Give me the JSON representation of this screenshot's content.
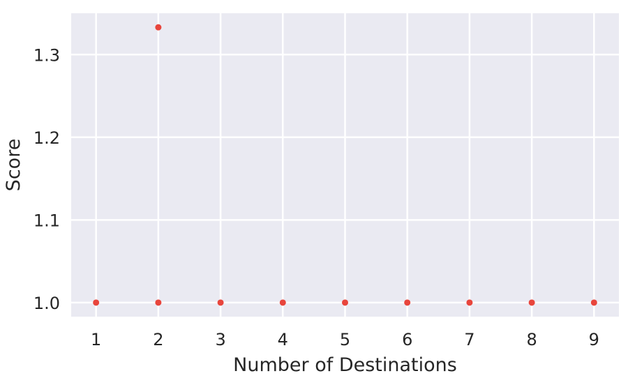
{
  "chart_data": {
    "type": "scatter",
    "title": "",
    "xlabel": "Number of Destinations",
    "ylabel": "Score",
    "xlim": [
      0.6,
      9.4
    ],
    "ylim": [
      0.983,
      1.35
    ],
    "xticks": [
      1,
      2,
      3,
      4,
      5,
      6,
      7,
      8,
      9
    ],
    "yticks": [
      1.0,
      1.1,
      1.2,
      1.3
    ],
    "xtick_labels": [
      "1",
      "2",
      "3",
      "4",
      "5",
      "6",
      "7",
      "8",
      "9"
    ],
    "ytick_labels": [
      "1.0",
      "1.1",
      "1.2",
      "1.3"
    ],
    "grid": true,
    "colors": {
      "marker": "#e8453c",
      "background": "#eaeaf2",
      "grid": "#ffffff"
    },
    "points": [
      {
        "x": 1,
        "y": 1.0
      },
      {
        "x": 2,
        "y": 1.0
      },
      {
        "x": 2,
        "y": 1.333
      },
      {
        "x": 3,
        "y": 1.0
      },
      {
        "x": 4,
        "y": 1.0
      },
      {
        "x": 5,
        "y": 1.0
      },
      {
        "x": 6,
        "y": 1.0
      },
      {
        "x": 7,
        "y": 1.0
      },
      {
        "x": 8,
        "y": 1.0
      },
      {
        "x": 9,
        "y": 1.0
      }
    ]
  }
}
